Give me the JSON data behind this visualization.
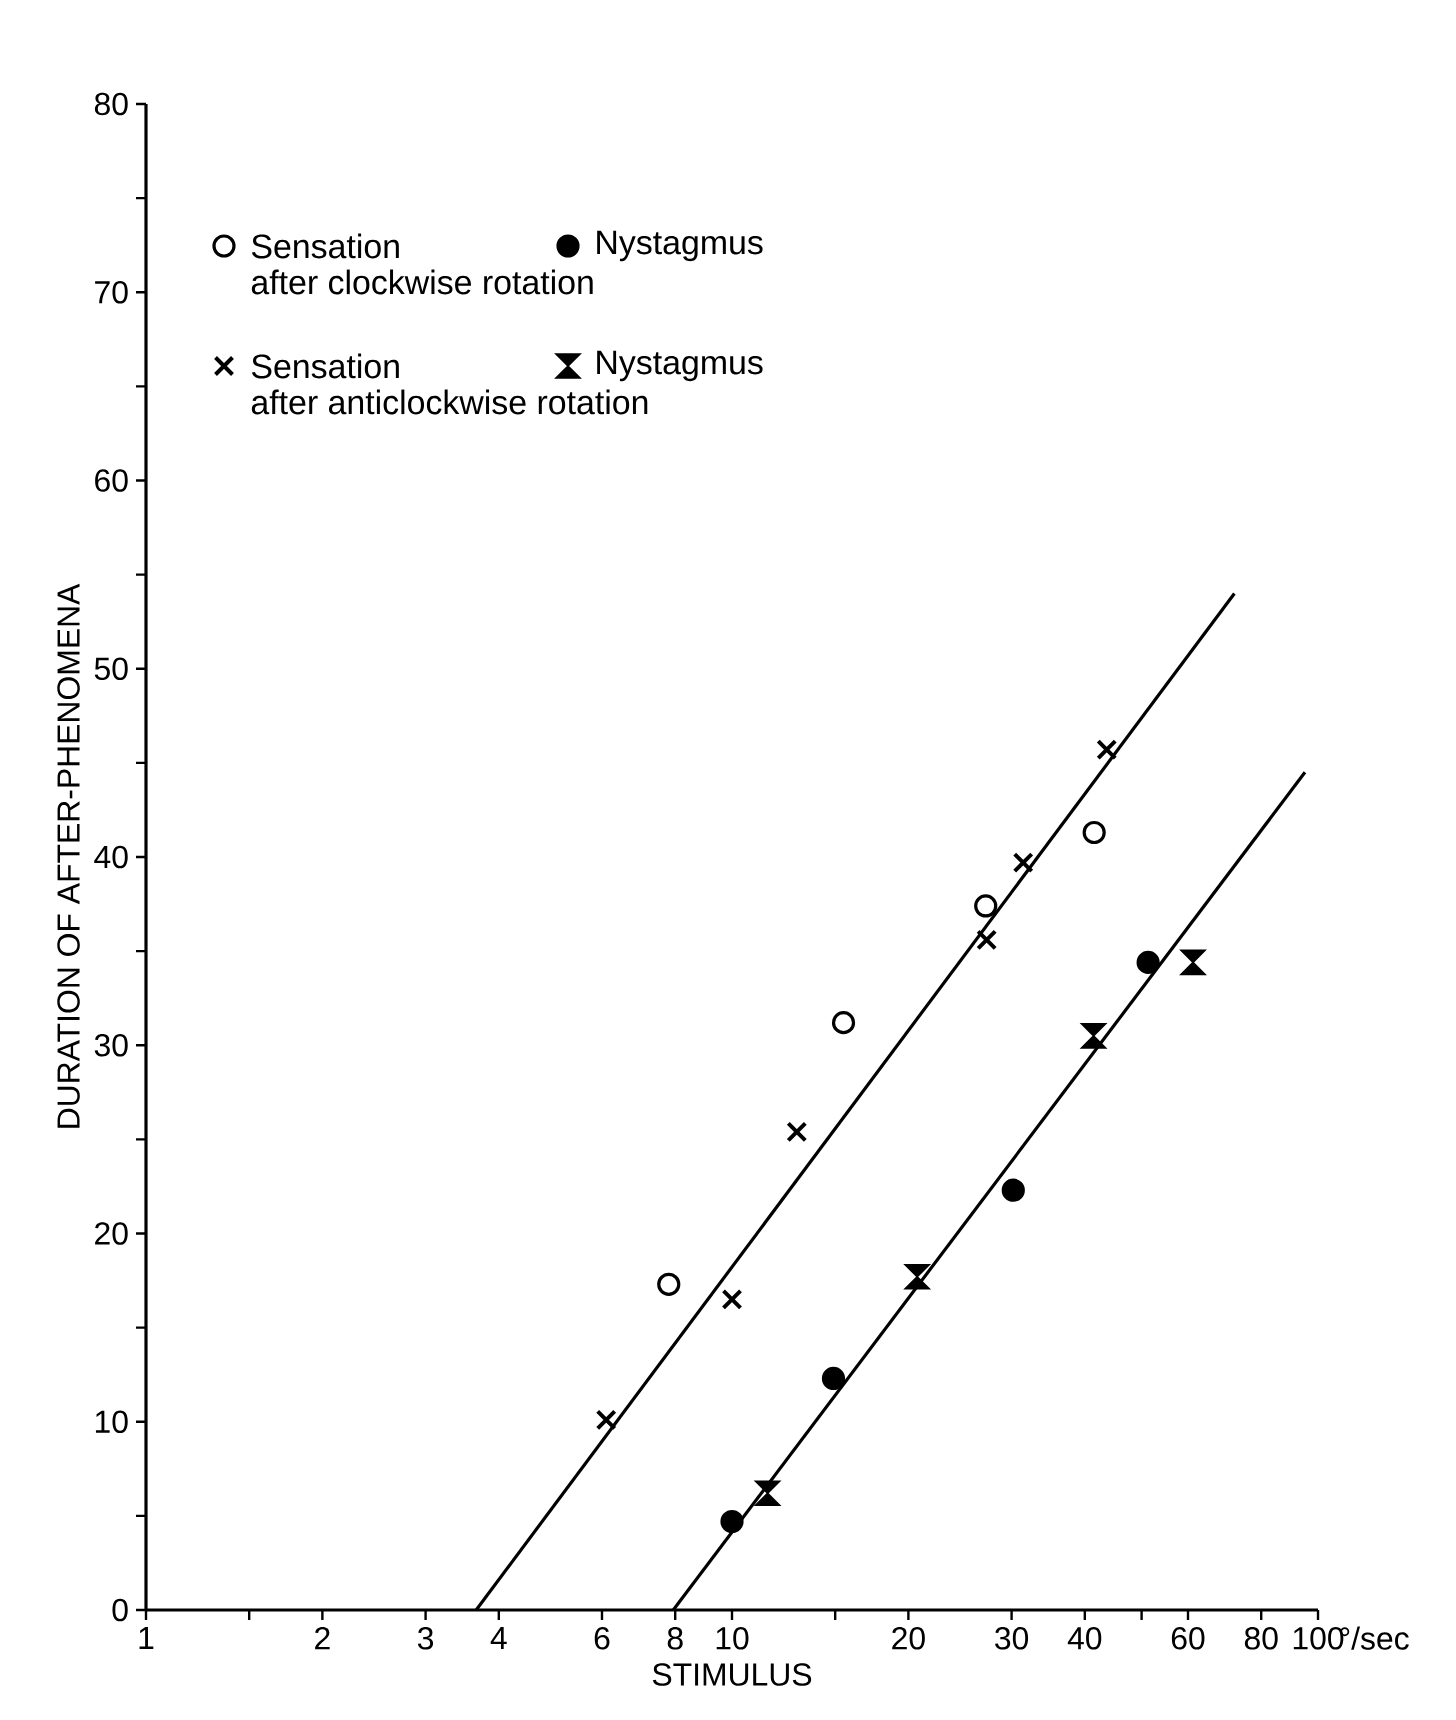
{
  "chart_data": {
    "type": "scatter",
    "xlabel": "STIMULUS",
    "ylabel": "DURATION OF AFTER-PHENOMENA",
    "log": "x",
    "grid": false,
    "legend": "top left",
    "xlim": [
      1,
      100
    ],
    "ylim": [
      0,
      80
    ],
    "xticks": [
      1,
      {
        "value": 1.5,
        "label": null
      },
      2,
      3,
      4,
      6,
      8,
      10,
      {
        "value": 15,
        "label": null
      },
      20,
      30,
      40,
      {
        "value": 50,
        "label": null
      },
      60,
      80,
      100
    ],
    "yticks": [
      0,
      {
        "value": 5,
        "label": null
      },
      10,
      {
        "value": 15,
        "label": null
      },
      20,
      {
        "value": 25,
        "label": null
      },
      30,
      {
        "value": 35,
        "label": null
      },
      40,
      {
        "value": 45,
        "label": null
      },
      50,
      {
        "value": 55,
        "label": null
      },
      60,
      {
        "value": 65,
        "label": null
      },
      70,
      {
        "value": 75,
        "label": null
      },
      80
    ],
    "annotations": [
      "°/sec",
      "after clockwise rotation",
      "after anticlockwise rotation"
    ],
    "series": [
      {
        "name": "Sensation",
        "color": "#ffffff",
        "marker": "circle",
        "x": [
          7.8,
          15.5,
          27.1,
          41.5
        ],
        "values": [
          17.3,
          31.2,
          37.4,
          41.3
        ]
      },
      {
        "name": "Nystagmus",
        "color": "#000000",
        "marker": "circle",
        "x": [
          10,
          14.9,
          30.2,
          51.3
        ],
        "values": [
          4.7,
          12.3,
          22.3,
          34.4
        ]
      },
      {
        "name": "Sensation",
        "color": "#000000",
        "marker": "cross",
        "x": [
          6.1,
          10,
          12.9,
          27.2,
          31.4,
          43.6
        ],
        "values": [
          10.1,
          16.5,
          25.4,
          35.6,
          39.7,
          45.7
        ]
      },
      {
        "name": "Nystagmus",
        "color": "#000000",
        "x": [
          11.5,
          20.7,
          41.4,
          61.2
        ],
        "values": [
          6.2,
          17.7,
          30.5,
          34.4
        ]
      },
      {
        "type": "line",
        "color": "#000000",
        "line_style": "solid",
        "marker": "none",
        "x": [
          3.66,
          72
        ],
        "values": [
          0,
          54
        ]
      },
      {
        "type": "line",
        "color": "#000000",
        "line_style": "solid",
        "marker": "none",
        "x": [
          7.94,
          95
        ],
        "values": [
          0,
          44.5
        ]
      }
    ]
  }
}
